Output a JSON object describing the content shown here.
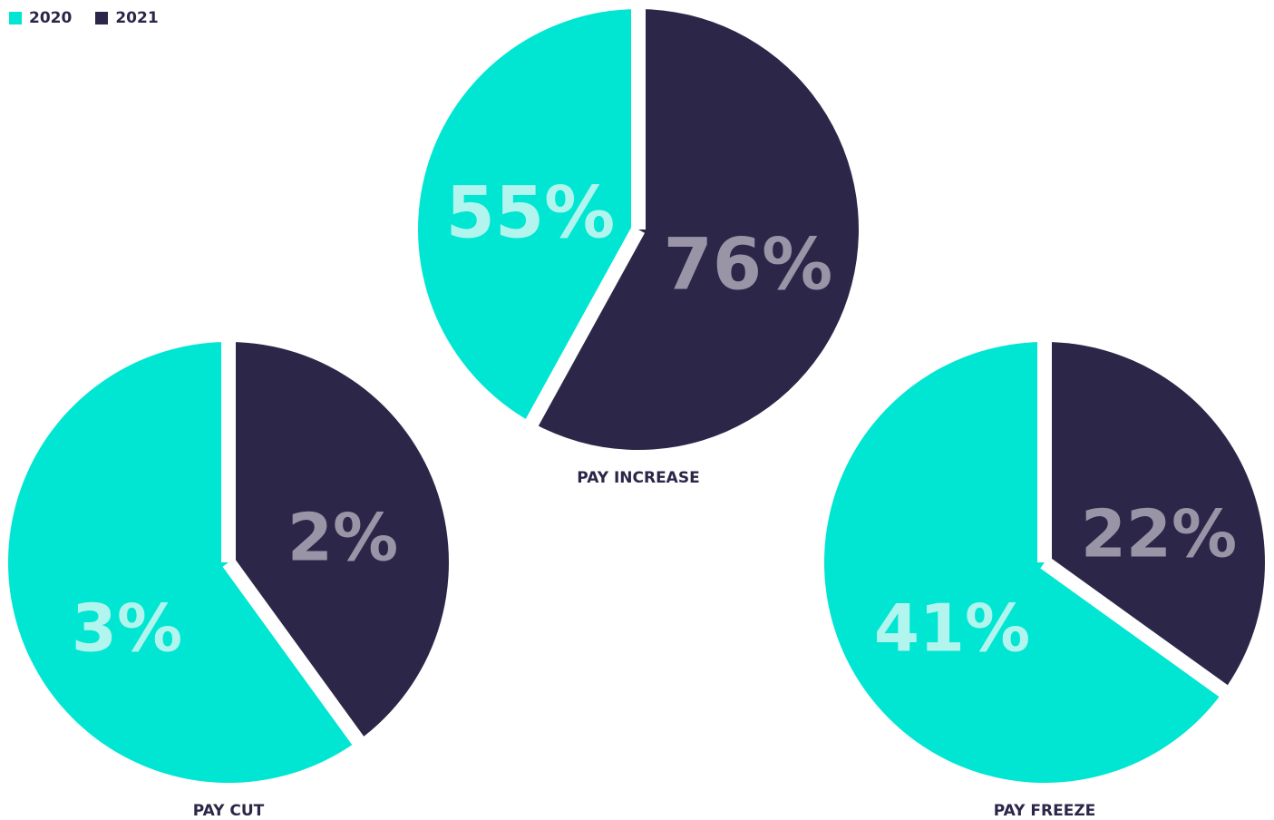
{
  "legend": [
    {
      "label": "2020",
      "color": "#00e6d2"
    },
    {
      "label": "2021",
      "color": "#2c2649"
    }
  ],
  "colors": {
    "series_2020": "#00e6d2",
    "series_2021": "#2c2649",
    "label_2020": "#b2f4ee",
    "label_2021": "#9a95a6",
    "caption": "#2c2649",
    "gap": "#ffffff"
  },
  "chart_data": [
    {
      "type": "pie",
      "title": "PAY INCREASE",
      "series": [
        {
          "name": "2020",
          "label": "55%",
          "value": 55
        },
        {
          "name": "2021",
          "label": "76%",
          "value": 76
        }
      ]
    },
    {
      "type": "pie",
      "title": "PAY CUT",
      "series": [
        {
          "name": "2020",
          "label": "3%",
          "value": 3
        },
        {
          "name": "2021",
          "label": "2%",
          "value": 2
        }
      ]
    },
    {
      "type": "pie",
      "title": "PAY FREEZE",
      "series": [
        {
          "name": "2020",
          "label": "41%",
          "value": 41
        },
        {
          "name": "2021",
          "label": "22%",
          "value": 22
        }
      ]
    }
  ]
}
